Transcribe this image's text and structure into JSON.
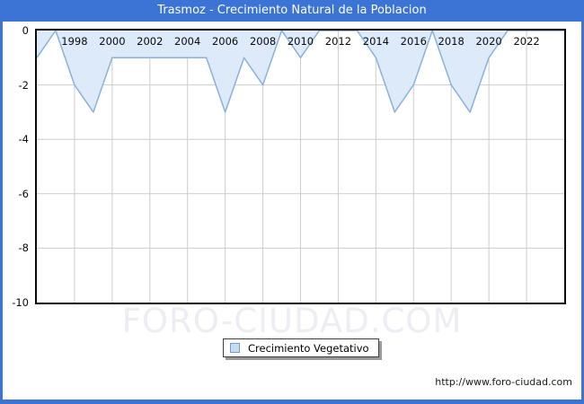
{
  "title": "Trasmoz - Crecimiento Natural de la Poblacion",
  "watermark": "FORO-CIUDAD.COM",
  "footer_url": "http://www.foro-ciudad.com",
  "legend": {
    "label": "Crecimiento Vegetativo",
    "swatch_fill": "#c6dcf2",
    "swatch_border": "#6d9ed6"
  },
  "colors": {
    "frame_blue": "#3b74d4",
    "area_fill": "#dceafa",
    "line": "#8ab0dd",
    "grid": "#cccccc",
    "plot_border": "#0a0a0a",
    "watermark": "#ededf3"
  },
  "chart_data": {
    "type": "area",
    "title": "Trasmoz - Crecimiento Natural de la Poblacion",
    "series_name": "Crecimiento Vegetativo",
    "x": [
      1996,
      1997,
      1998,
      1999,
      2000,
      2001,
      2002,
      2003,
      2004,
      2005,
      2006,
      2007,
      2008,
      2009,
      2010,
      2011,
      2012,
      2013,
      2014,
      2015,
      2016,
      2017,
      2018,
      2019,
      2020,
      2021,
      2022,
      2023,
      2024
    ],
    "values": [
      -1,
      0,
      -2,
      -3,
      -1,
      -1,
      -1,
      -1,
      -1,
      -1,
      -3,
      -1,
      -2,
      0,
      -1,
      0,
      0,
      0,
      -1,
      -3,
      -2,
      0,
      -2,
      -3,
      -1,
      0,
      0,
      0,
      0
    ],
    "xlim": [
      1996,
      2024
    ],
    "ylim": [
      -10,
      0
    ],
    "xticks": [
      1998,
      2000,
      2002,
      2004,
      2006,
      2008,
      2010,
      2012,
      2014,
      2016,
      2018,
      2020,
      2022
    ],
    "yticks": [
      0,
      -2,
      -4,
      -6,
      -8,
      -10
    ],
    "grid": true,
    "legend_position": "bottom-center",
    "xlabel": "",
    "ylabel": ""
  }
}
